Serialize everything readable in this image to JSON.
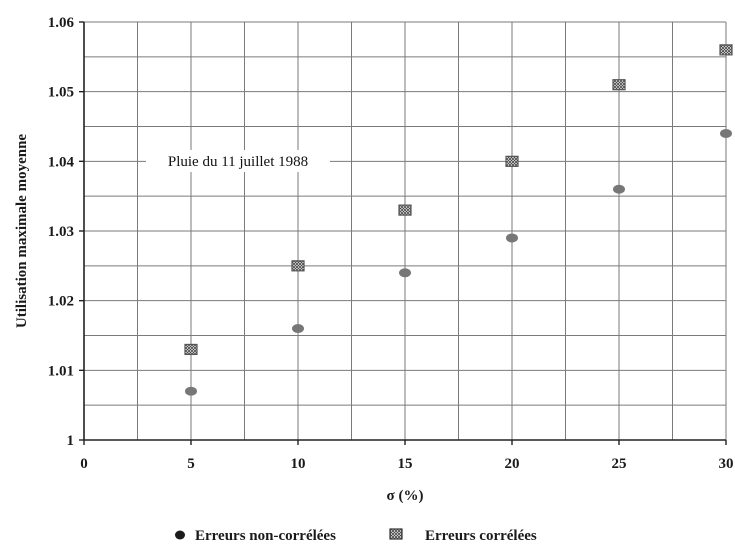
{
  "chart_data": {
    "type": "scatter",
    "xlabel": "σ (%)",
    "ylabel": "Utilisation maximale moyenne",
    "xlim": [
      0,
      30
    ],
    "ylim": [
      1,
      1.06
    ],
    "x_ticks": [
      "0",
      "5",
      "10",
      "15",
      "20",
      "25",
      "30"
    ],
    "y_ticks": [
      "1",
      "1.01",
      "1.02",
      "1.03",
      "1.04",
      "1.05",
      "1.06"
    ],
    "grid": true,
    "legend_position": "bottom-center",
    "annotation": "Pluie du 11 juillet 1988",
    "series": [
      {
        "name": "Erreurs non-corrélées",
        "marker": "filled-circle",
        "color": "#777777",
        "points": [
          [
            5,
            1.007
          ],
          [
            10,
            1.016
          ],
          [
            15,
            1.024
          ],
          [
            20,
            1.029
          ],
          [
            25,
            1.036
          ],
          [
            30,
            1.044
          ]
        ]
      },
      {
        "name": "Erreurs corrélées",
        "marker": "hatched-square",
        "color": "#555555",
        "points": [
          [
            5,
            1.013
          ],
          [
            10,
            1.025
          ],
          [
            15,
            1.033
          ],
          [
            20,
            1.04
          ],
          [
            25,
            1.051
          ],
          [
            30,
            1.056
          ]
        ]
      }
    ]
  }
}
